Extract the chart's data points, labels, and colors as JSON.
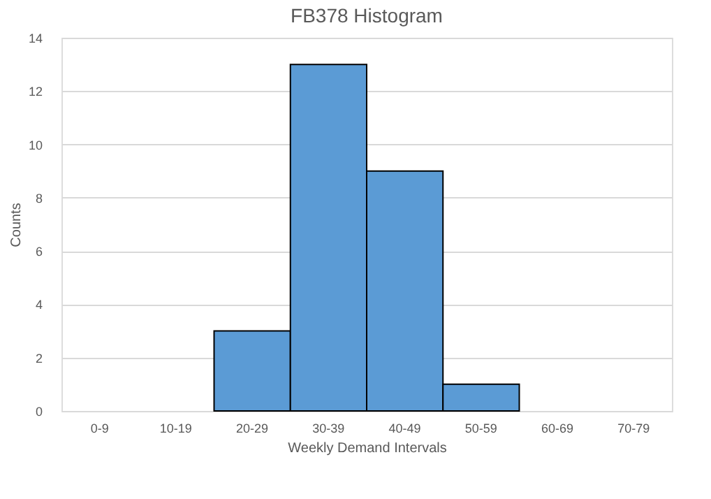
{
  "chart_data": {
    "type": "bar",
    "title": "FB378 Histogram",
    "xlabel": "Weekly Demand Intervals",
    "ylabel": "Counts",
    "categories": [
      "0-9",
      "10-19",
      "20-29",
      "30-39",
      "40-49",
      "50-59",
      "60-69",
      "70-79"
    ],
    "values": [
      0,
      0,
      3,
      13,
      9,
      1,
      0,
      0
    ],
    "color": "#5b9bd5",
    "ylim": [
      0,
      14
    ],
    "yticks": [
      0,
      2,
      4,
      6,
      8,
      10,
      12,
      14
    ],
    "grid": "y"
  }
}
